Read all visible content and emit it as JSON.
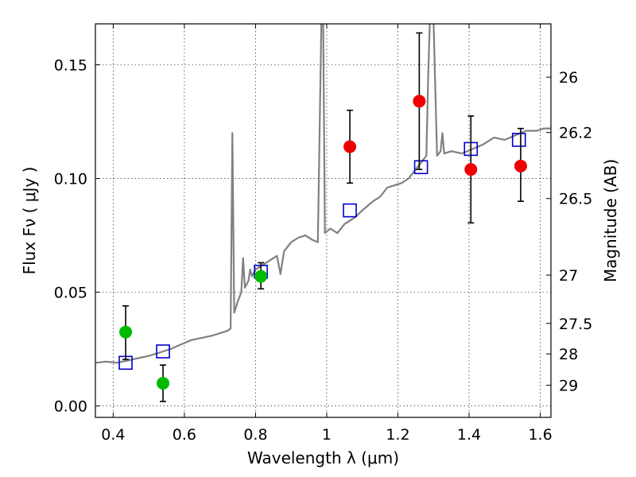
{
  "chart_data": {
    "type": "scatter",
    "title": "",
    "xlabel": "Wavelength  λ (μm)",
    "ylabel": "Flux  Fν  ( μJy )",
    "y2label": "Magnitude (AB)",
    "xlim": [
      0.35,
      1.63
    ],
    "ylim": [
      -0.005,
      0.168
    ],
    "grid": true,
    "legend": "none",
    "x_ticks": [
      0.4,
      0.6,
      0.8,
      1.0,
      1.2,
      1.4,
      1.6
    ],
    "x_tick_labels": [
      "0.4",
      "0.6",
      "0.8",
      "1",
      "1.2",
      "1.4",
      "1.6"
    ],
    "y_ticks": [
      0.0,
      0.05,
      0.1,
      0.15
    ],
    "y_tick_labels": [
      "0.00",
      "0.05",
      "0.10",
      "0.15"
    ],
    "y2_ticks": [
      26,
      26.2,
      26.5,
      27,
      27.5,
      28,
      29
    ],
    "y2_tick_labels": [
      "26",
      "26.2",
      "26.5",
      "27",
      "27.5",
      "28",
      "29"
    ],
    "colors": {
      "sed": "#808080",
      "model_box": "#0000cc",
      "green_points": "#00bb00",
      "red_points": "#ee0000",
      "error_bars": "#000000"
    },
    "series": [
      {
        "type": "line",
        "points": [
          [
            0.35,
            0.019
          ],
          [
            0.38,
            0.0195
          ],
          [
            0.41,
            0.019
          ],
          [
            0.44,
            0.02
          ],
          [
            0.47,
            0.021
          ],
          [
            0.5,
            0.022
          ],
          [
            0.53,
            0.0235
          ],
          [
            0.56,
            0.025
          ],
          [
            0.59,
            0.027
          ],
          [
            0.62,
            0.029
          ],
          [
            0.65,
            0.03
          ],
          [
            0.68,
            0.031
          ],
          [
            0.7,
            0.032
          ],
          [
            0.72,
            0.033
          ],
          [
            0.73,
            0.034
          ],
          [
            0.735,
            0.12
          ],
          [
            0.74,
            0.041
          ],
          [
            0.75,
            0.046
          ],
          [
            0.76,
            0.05
          ],
          [
            0.765,
            0.065
          ],
          [
            0.77,
            0.052
          ],
          [
            0.78,
            0.055
          ],
          [
            0.785,
            0.06
          ],
          [
            0.79,
            0.057
          ],
          [
            0.8,
            0.06
          ],
          [
            0.82,
            0.062
          ],
          [
            0.84,
            0.064
          ],
          [
            0.86,
            0.066
          ],
          [
            0.87,
            0.058
          ],
          [
            0.88,
            0.068
          ],
          [
            0.9,
            0.072
          ],
          [
            0.92,
            0.074
          ],
          [
            0.94,
            0.075
          ],
          [
            0.96,
            0.073
          ],
          [
            0.975,
            0.072
          ],
          [
            0.985,
            0.17
          ],
          [
            0.99,
            0.17
          ],
          [
            0.995,
            0.076
          ],
          [
            1.01,
            0.078
          ],
          [
            1.03,
            0.076
          ],
          [
            1.05,
            0.08
          ],
          [
            1.08,
            0.083
          ],
          [
            1.1,
            0.086
          ],
          [
            1.13,
            0.09
          ],
          [
            1.15,
            0.092
          ],
          [
            1.17,
            0.096
          ],
          [
            1.19,
            0.097
          ],
          [
            1.21,
            0.098
          ],
          [
            1.23,
            0.1
          ],
          [
            1.25,
            0.104
          ],
          [
            1.27,
            0.108
          ],
          [
            1.28,
            0.11
          ],
          [
            1.285,
            0.145
          ],
          [
            1.29,
            0.17
          ],
          [
            1.3,
            0.17
          ],
          [
            1.305,
            0.14
          ],
          [
            1.31,
            0.11
          ],
          [
            1.32,
            0.112
          ],
          [
            1.325,
            0.12
          ],
          [
            1.33,
            0.111
          ],
          [
            1.35,
            0.112
          ],
          [
            1.38,
            0.111
          ],
          [
            1.41,
            0.113
          ],
          [
            1.44,
            0.115
          ],
          [
            1.47,
            0.118
          ],
          [
            1.5,
            0.117
          ],
          [
            1.53,
            0.119
          ],
          [
            1.56,
            0.121
          ],
          [
            1.59,
            0.121
          ],
          [
            1.61,
            0.122
          ],
          [
            1.63,
            0.122
          ]
        ]
      },
      {
        "type": "square-markers",
        "points": [
          [
            0.435,
            0.019
          ],
          [
            0.54,
            0.024
          ],
          [
            0.815,
            0.059
          ],
          [
            1.065,
            0.086
          ],
          [
            1.265,
            0.105
          ],
          [
            1.405,
            0.113
          ],
          [
            1.54,
            0.117
          ]
        ]
      },
      {
        "type": "error-points",
        "points": [
          {
            "x": 0.435,
            "y": 0.0325,
            "ylo": 0.0205,
            "yhi": 0.044,
            "color": "green"
          },
          {
            "x": 0.54,
            "y": 0.01,
            "ylo": 0.002,
            "yhi": 0.018,
            "color": "green"
          },
          {
            "x": 0.815,
            "y": 0.057,
            "ylo": 0.0515,
            "yhi": 0.063,
            "color": "green"
          },
          {
            "x": 1.065,
            "y": 0.114,
            "ylo": 0.098,
            "yhi": 0.13,
            "color": "red"
          },
          {
            "x": 1.26,
            "y": 0.134,
            "ylo": 0.104,
            "yhi": 0.164,
            "color": "red"
          },
          {
            "x": 1.405,
            "y": 0.104,
            "ylo": 0.0805,
            "yhi": 0.1275,
            "color": "red"
          },
          {
            "x": 1.545,
            "y": 0.1055,
            "ylo": 0.09,
            "yhi": 0.122,
            "color": "red"
          }
        ]
      }
    ]
  }
}
